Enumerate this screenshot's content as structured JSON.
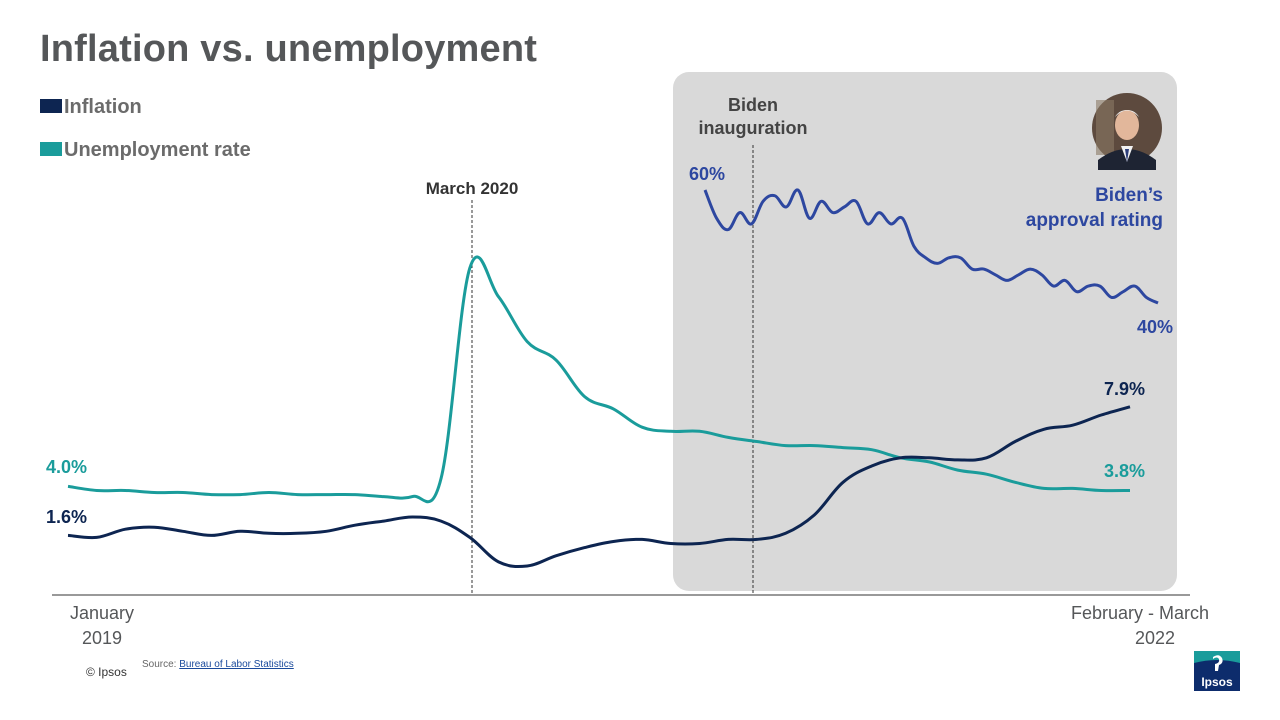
{
  "title": "Inflation vs. unemployment",
  "legend": [
    {
      "label": "Inflation",
      "color": "#0d2551"
    },
    {
      "label": "Unemployment rate",
      "color": "#1a9c9b"
    }
  ],
  "annotations": {
    "march_2020": "March 2020",
    "biden_inauguration_line1": "Biden",
    "biden_inauguration_line2": "inauguration",
    "approval_line1": "Biden’s",
    "approval_line2": "approval rating"
  },
  "axis": {
    "start_line1": "January",
    "start_line2": "2019",
    "end_line1": "February - March",
    "end_line2": "2022"
  },
  "labels": {
    "unemp_start": "4.0%",
    "infl_start": "1.6%",
    "infl_end": "7.9%",
    "unemp_end": "3.8%",
    "approval_start": "60%",
    "approval_end": "40%"
  },
  "footer": {
    "copyright": "© Ipsos",
    "source_prefix": "Source: ",
    "source_link": "Bureau of Labor Statistics",
    "logo_text": "Ipsos"
  },
  "colors": {
    "inflation": "#0d2551",
    "unemployment": "#1a9c9b",
    "approval": "#2d47a0",
    "shade": "#d9d9d9"
  },
  "chart_data": {
    "type": "line",
    "x_range": [
      "2019-01",
      "2022-03"
    ],
    "y_range": [
      0,
      16
    ],
    "grid": false,
    "legend_position": "top-left",
    "series": [
      {
        "name": "Inflation",
        "x": [
          "2019-01",
          "2019-02",
          "2019-03",
          "2019-04",
          "2019-05",
          "2019-06",
          "2019-07",
          "2019-08",
          "2019-09",
          "2019-10",
          "2019-11",
          "2019-12",
          "2020-01",
          "2020-02",
          "2020-03",
          "2020-04",
          "2020-05",
          "2020-06",
          "2020-07",
          "2020-08",
          "2020-09",
          "2020-10",
          "2020-11",
          "2020-12",
          "2021-01",
          "2021-02",
          "2021-03",
          "2021-04",
          "2021-05",
          "2021-06",
          "2021-07",
          "2021-08",
          "2021-09",
          "2021-10",
          "2021-11",
          "2021-12",
          "2022-01",
          "2022-02"
        ],
        "values": [
          1.6,
          1.5,
          1.9,
          2.0,
          1.8,
          1.6,
          1.8,
          1.7,
          1.7,
          1.8,
          2.1,
          2.3,
          2.5,
          2.3,
          1.5,
          0.3,
          0.1,
          0.6,
          1.0,
          1.3,
          1.4,
          1.2,
          1.2,
          1.4,
          1.4,
          1.7,
          2.6,
          4.2,
          5.0,
          5.4,
          5.4,
          5.3,
          5.4,
          6.2,
          6.8,
          7.0,
          7.5,
          7.9
        ]
      },
      {
        "name": "Unemployment rate",
        "x": [
          "2019-01",
          "2019-02",
          "2019-03",
          "2019-04",
          "2019-05",
          "2019-06",
          "2019-07",
          "2019-08",
          "2019-09",
          "2019-10",
          "2019-11",
          "2019-12",
          "2020-01",
          "2020-02",
          "2020-03",
          "2020-04",
          "2020-05",
          "2020-06",
          "2020-07",
          "2020-08",
          "2020-09",
          "2020-10",
          "2020-11",
          "2020-12",
          "2021-01",
          "2021-02",
          "2021-03",
          "2021-04",
          "2021-05",
          "2021-06",
          "2021-07",
          "2021-08",
          "2021-09",
          "2021-10",
          "2021-11",
          "2021-12",
          "2022-01",
          "2022-02"
        ],
        "values": [
          4.0,
          3.8,
          3.8,
          3.7,
          3.7,
          3.6,
          3.6,
          3.7,
          3.6,
          3.6,
          3.6,
          3.5,
          3.5,
          4.4,
          14.7,
          13.3,
          11.1,
          10.2,
          8.4,
          7.8,
          6.9,
          6.7,
          6.7,
          6.4,
          6.2,
          6.0,
          6.0,
          5.9,
          5.8,
          5.4,
          5.2,
          4.8,
          4.6,
          4.2,
          3.9,
          3.9,
          3.8,
          3.8
        ]
      },
      {
        "name": "Biden’s approval rating",
        "values": [
          60,
          55,
          53,
          56,
          54,
          58,
          59,
          57,
          60,
          55,
          58,
          56,
          57,
          58,
          54,
          56,
          54,
          55,
          50,
          48,
          47,
          48,
          48,
          46,
          46,
          45,
          44,
          45,
          46,
          45,
          43,
          44,
          42,
          43,
          43,
          41,
          42,
          43,
          41,
          40
        ]
      }
    ]
  }
}
